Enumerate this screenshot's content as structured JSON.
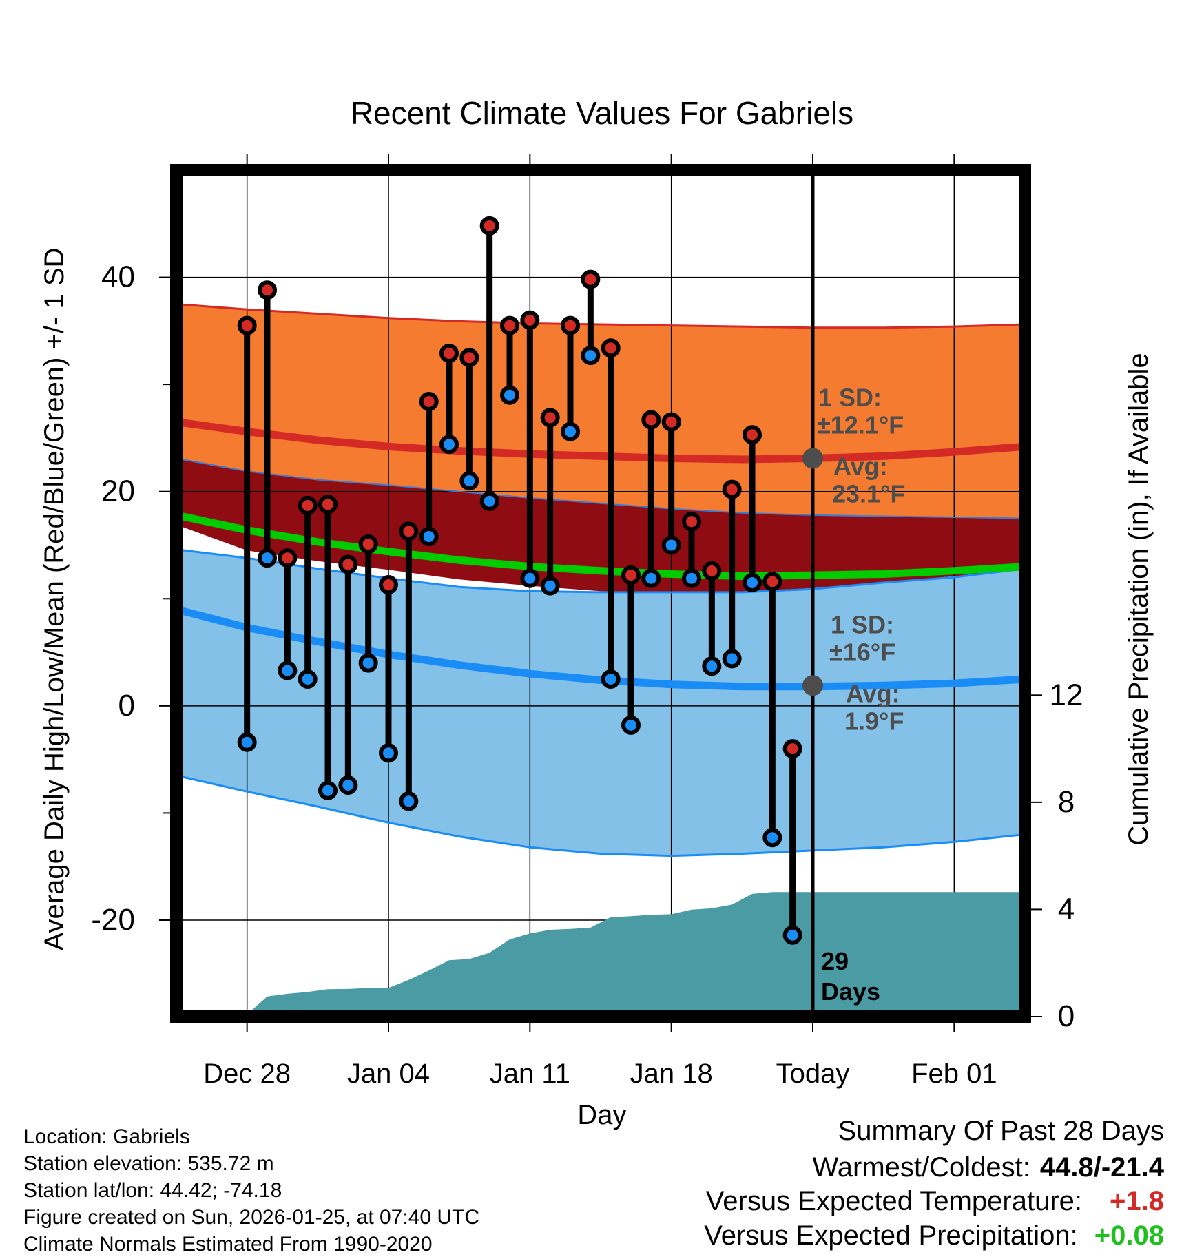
{
  "chart_data": {
    "type": "line",
    "title": "Recent Climate Values For Gabriels",
    "xlabel": "Day",
    "ylabel_left": "Average Daily High/Low/Mean (Red/Blue/Green) +/- 1 SD",
    "ylabel_right": "Cumulative Precipitation (in), If Available",
    "xlim": [
      -3.5,
      38.5
    ],
    "ylim_left": [
      -29,
      50
    ],
    "ylim_right": [
      0,
      31.6
    ],
    "x_ticks": [
      {
        "x": 0,
        "label": "Dec 28"
      },
      {
        "x": 7,
        "label": "Jan 04"
      },
      {
        "x": 14,
        "label": "Jan 11"
      },
      {
        "x": 21,
        "label": "Jan 18"
      },
      {
        "x": 28,
        "label": "Today"
      },
      {
        "x": 35,
        "label": "Feb 01"
      }
    ],
    "y_ticks_left": [
      {
        "v": 40,
        "label": "40"
      },
      {
        "v": 20,
        "label": "20"
      },
      {
        "v": 0,
        "label": "0"
      },
      {
        "v": -20,
        "label": "-20"
      }
    ],
    "y_minor_left": [
      30,
      10,
      -10
    ],
    "y_ticks_right": [
      {
        "v": 0,
        "label": "0"
      },
      {
        "v": 4,
        "label": "4"
      },
      {
        "v": 8,
        "label": "8"
      },
      {
        "v": 12,
        "label": "12"
      }
    ],
    "today_x": 28,
    "today_label_count": "29",
    "today_label_unit": "Days",
    "normals": {
      "x": [
        -3.5,
        0,
        3.5,
        7,
        10.5,
        14,
        17.5,
        21,
        24.5,
        28,
        31.5,
        35,
        38.5
      ],
      "high_mean": [
        26.5,
        25.6,
        24.8,
        24.2,
        23.8,
        23.5,
        23.3,
        23.1,
        23.0,
        23.1,
        23.3,
        23.7,
        24.2
      ],
      "high_upper": [
        37.5,
        37.0,
        36.6,
        36.2,
        35.9,
        35.7,
        35.6,
        35.5,
        35.4,
        35.3,
        35.3,
        35.4,
        35.6
      ],
      "high_lower": [
        23.1,
        21.9,
        21.1,
        20.6,
        20.0,
        19.4,
        18.9,
        18.4,
        18.0,
        17.8,
        17.7,
        17.6,
        17.5
      ],
      "mean": [
        17.8,
        16.4,
        15.3,
        14.4,
        13.6,
        13.0,
        12.6,
        12.3,
        12.1,
        12.2,
        12.3,
        12.6,
        13.0
      ],
      "low_mean": [
        9.0,
        7.3,
        6.0,
        4.8,
        3.8,
        3.0,
        2.4,
        2.0,
        1.8,
        1.8,
        1.9,
        2.1,
        2.5
      ],
      "low_upper": [
        14.6,
        13.8,
        12.8,
        11.9,
        11.1,
        10.7,
        10.6,
        10.6,
        10.6,
        10.9,
        11.5,
        12.0,
        12.8
      ],
      "low_lower": [
        -6.5,
        -8.0,
        -9.4,
        -10.9,
        -12.2,
        -13.2,
        -13.8,
        -14.0,
        -13.8,
        -13.5,
        -13.2,
        -12.7,
        -12.0
      ],
      "dark_lower": [
        16.9,
        14.5,
        13.5,
        12.7,
        11.8,
        11.2,
        10.7,
        10.6,
        10.6,
        11.0,
        11.5,
        12.1,
        12.8
      ]
    },
    "daily": {
      "x": [
        0,
        1,
        2,
        3,
        4,
        5,
        6,
        7,
        8,
        9,
        10,
        11,
        12,
        13,
        14,
        15,
        16,
        17,
        18,
        19,
        20,
        21,
        22,
        23,
        24,
        25,
        26,
        27
      ],
      "high": [
        35.5,
        38.8,
        13.8,
        18.7,
        18.8,
        13.2,
        15.1,
        11.3,
        16.3,
        28.4,
        32.9,
        32.5,
        44.8,
        35.5,
        36.0,
        26.9,
        35.5,
        39.8,
        33.4,
        12.2,
        26.7,
        26.5,
        17.2,
        12.6,
        20.2,
        25.3,
        11.6,
        -4.0
      ],
      "low": [
        -3.4,
        13.8,
        3.3,
        2.5,
        -7.9,
        -7.4,
        4.0,
        -4.4,
        -8.9,
        15.8,
        24.4,
        21.0,
        19.1,
        29.0,
        11.9,
        11.2,
        25.6,
        32.7,
        2.5,
        -1.8,
        11.9,
        15.0,
        11.9,
        3.7,
        4.4,
        11.5,
        -12.3,
        -21.4
      ]
    },
    "precip": {
      "x": [
        -0.5,
        0,
        1,
        2,
        3,
        4,
        5,
        6,
        7,
        8,
        9,
        10,
        11,
        12,
        13,
        14,
        15,
        16,
        17,
        18,
        19,
        20,
        21,
        22,
        23,
        24,
        25,
        26,
        27,
        28,
        38.5
      ],
      "cum": [
        0,
        0.08,
        0.75,
        0.85,
        0.92,
        1.02,
        1.03,
        1.07,
        1.07,
        1.37,
        1.72,
        2.1,
        2.15,
        2.38,
        2.88,
        3.1,
        3.24,
        3.27,
        3.32,
        3.71,
        3.75,
        3.8,
        3.82,
        3.99,
        4.04,
        4.18,
        4.58,
        4.65,
        4.65,
        4.65,
        4.65
      ]
    },
    "high_annotation": {
      "sd_label": "1 SD:",
      "sd_value": "±12.1°F",
      "avg_label": "Avg:",
      "avg_value": "23.1°F",
      "avg": 23.1
    },
    "low_annotation": {
      "sd_label": "1 SD:",
      "sd_value": "±16°F",
      "avg_label": "Avg:",
      "avg_value": "1.9°F",
      "avg": 1.9
    }
  },
  "colors": {
    "high_band": "#f47b30",
    "high_line": "#d42a26",
    "dark_band": "#900c13",
    "mean_line": "#00cc00",
    "low_band": "#84c1e8",
    "low_line": "#1a8cf5",
    "precip_fill": "#4a9ba4",
    "high_dot": "#d42a26",
    "low_dot": "#1a8cf5",
    "annotation": "#4d4d4d",
    "positive_red": "#d42a26",
    "positive_green": "#1ec01e"
  },
  "footer": {
    "location": "Location: Gabriels",
    "elevation": "Station elevation: 535.72 m",
    "latlon": "Station lat/lon: 44.42; -74.18",
    "created": "Figure created on Sun, 2026-01-25, at 07:40 UTC",
    "normals": "Climate Normals Estimated From 1990-2020"
  },
  "summary": {
    "title": "Summary Of Past 28 Days",
    "warmest_label": "Warmest/Coldest:",
    "warmest_value": "44.8/-21.4",
    "temp_label": "Versus Expected Temperature:",
    "temp_value": "+1.8",
    "precip_label": "Versus Expected Precipitation:",
    "precip_value": "+0.08"
  }
}
